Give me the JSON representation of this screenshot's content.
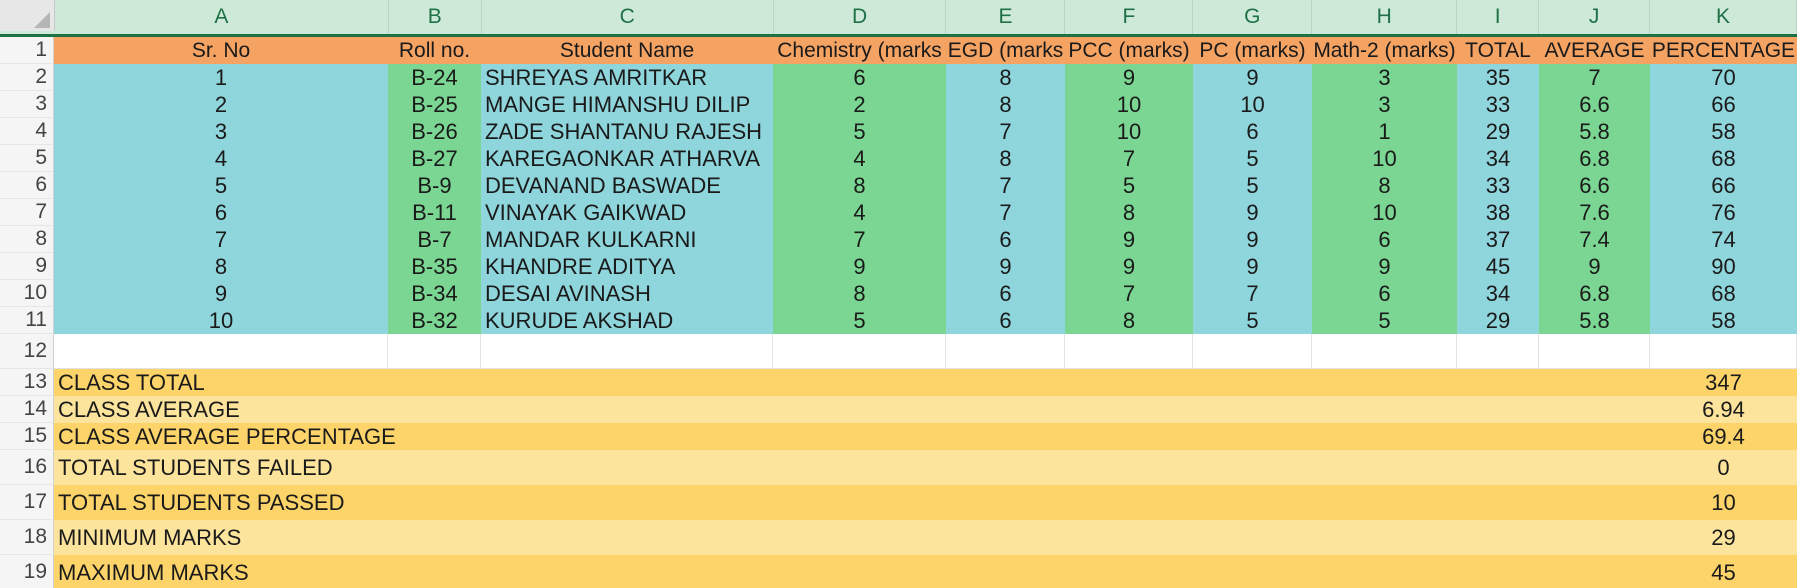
{
  "columns": [
    "A",
    "B",
    "C",
    "D",
    "E",
    "F",
    "G",
    "H",
    "I",
    "J",
    "K"
  ],
  "header": [
    "Sr. No",
    "Roll no.",
    "Student Name",
    "Chemistry (marks",
    "EGD (marks",
    "PCC (marks)",
    "PC (marks)",
    "Math-2 (marks)",
    "TOTAL",
    "AVERAGE",
    "PERCENTAGE"
  ],
  "rows": [
    [
      "1",
      "B-24",
      "SHREYAS  AMRITKAR",
      "6",
      "8",
      "9",
      "9",
      "3",
      "35",
      "7",
      "70"
    ],
    [
      "2",
      "B-25",
      "MANGE HIMANSHU DILIP",
      "2",
      "8",
      "10",
      "10",
      "3",
      "33",
      "6.6",
      "66"
    ],
    [
      "3",
      "B-26",
      "ZADE SHANTANU RAJESH",
      "5",
      "7",
      "10",
      "6",
      "1",
      "29",
      "5.8",
      "58"
    ],
    [
      "4",
      "B-27",
      "KAREGAONKAR ATHARVA",
      "4",
      "8",
      "7",
      "5",
      "10",
      "34",
      "6.8",
      "68"
    ],
    [
      "5",
      "B-9",
      "DEVANAND BASWADE",
      "8",
      "7",
      "5",
      "5",
      "8",
      "33",
      "6.6",
      "66"
    ],
    [
      "6",
      "B-11",
      "VINAYAK GAIKWAD",
      "4",
      "7",
      "8",
      "9",
      "10",
      "38",
      "7.6",
      "76"
    ],
    [
      "7",
      "B-7",
      "MANDAR KULKARNI",
      "7",
      "6",
      "9",
      "9",
      "6",
      "37",
      "7.4",
      "74"
    ],
    [
      "8",
      "B-35",
      "KHANDRE ADITYA",
      "9",
      "9",
      "9",
      "9",
      "9",
      "45",
      "9",
      "90"
    ],
    [
      "9",
      "B-34",
      "DESAI AVINASH",
      "8",
      "6",
      "7",
      "7",
      "6",
      "34",
      "6.8",
      "68"
    ],
    [
      "10",
      "B-32",
      "KURUDE AKSHAD",
      "5",
      "6",
      "8",
      "5",
      "5",
      "29",
      "5.8",
      "58"
    ]
  ],
  "summary": [
    {
      "label": "CLASS TOTAL",
      "value": "347"
    },
    {
      "label": "CLASS AVERAGE",
      "value": "6.94"
    },
    {
      "label": "CLASS AVERAGE PERCENTAGE",
      "value": "69.4"
    },
    {
      "label": "TOTAL STUDENTS FAILED",
      "value": "0"
    },
    {
      "label": "TOTAL STUDENTS PASSED",
      "value": "10"
    },
    {
      "label": "MINIMUM MARKS",
      "value": "29"
    },
    {
      "label": "MAXIMUM MARKS",
      "value": "45"
    }
  ],
  "row_numbers": [
    "1",
    "2",
    "3",
    "4",
    "5",
    "6",
    "7",
    "8",
    "9",
    "10",
    "11",
    "12",
    "13",
    "14",
    "15",
    "16",
    "17",
    "18",
    "19"
  ],
  "colors": {
    "header_orange": "#f4a363",
    "teal": "#8fd5dc",
    "green": "#7ad692",
    "summary_dark": "#fdd469",
    "summary_light": "#fde49c",
    "excel_green": "#1e7145"
  }
}
